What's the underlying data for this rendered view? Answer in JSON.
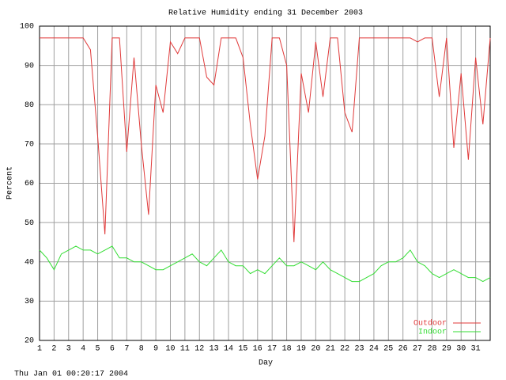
{
  "chart_data": {
    "type": "line",
    "title": "Relative Humidity ending 31 December 2003",
    "y_label": "Percent",
    "x_label": "Day",
    "footer": "Thu Jan 01 00:20:17 2004",
    "xlim": [
      1,
      32
    ],
    "xticks": [
      1,
      2,
      3,
      4,
      5,
      6,
      7,
      8,
      9,
      10,
      11,
      12,
      13,
      14,
      15,
      16,
      17,
      18,
      19,
      20,
      21,
      22,
      23,
      24,
      25,
      26,
      27,
      28,
      29,
      30,
      31
    ],
    "ylim": [
      20,
      100
    ],
    "yticks": [
      20,
      30,
      40,
      50,
      60,
      70,
      80,
      90,
      100
    ],
    "grid": true,
    "legend": "bottom-right",
    "x": [
      1,
      1.5,
      2,
      2.5,
      3,
      3.5,
      4,
      4.5,
      5,
      5.5,
      6,
      6.5,
      7,
      7.5,
      8,
      8.5,
      9,
      9.5,
      10,
      10.5,
      11,
      11.5,
      12,
      12.5,
      13,
      13.5,
      14,
      14.5,
      15,
      15.5,
      16,
      16.5,
      17,
      17.5,
      18,
      18.5,
      19,
      19.5,
      20,
      20.5,
      21,
      21.5,
      22,
      22.5,
      23,
      23.5,
      24,
      24.5,
      25,
      25.5,
      26,
      26.5,
      27,
      27.5,
      28,
      28.5,
      29,
      29.5,
      30,
      30.5,
      31,
      31.5,
      32
    ],
    "series": [
      {
        "name": "Outdoor",
        "color": "#e03a3a",
        "values": [
          97,
          97,
          97,
          97,
          97,
          97,
          97,
          94,
          72,
          47,
          97,
          97,
          68,
          92,
          70,
          52,
          85,
          78,
          96,
          93,
          97,
          97,
          97,
          87,
          85,
          97,
          97,
          97,
          92,
          75,
          61,
          72,
          97,
          97,
          90,
          45,
          88,
          78,
          96,
          82,
          97,
          97,
          78,
          73,
          97,
          97,
          97,
          97,
          97,
          97,
          97,
          97,
          96,
          97,
          97,
          82,
          97,
          69,
          88,
          66,
          92,
          75,
          97
        ]
      },
      {
        "name": "Indoor",
        "color": "#33dd33",
        "values": [
          43,
          41,
          38,
          42,
          43,
          44,
          43,
          43,
          42,
          43,
          44,
          41,
          41,
          40,
          40,
          39,
          38,
          38,
          39,
          40,
          41,
          42,
          40,
          39,
          41,
          43,
          40,
          39,
          39,
          37,
          38,
          37,
          39,
          41,
          39,
          39,
          40,
          39,
          38,
          40,
          38,
          37,
          36,
          35,
          35,
          36,
          37,
          39,
          40,
          40,
          41,
          43,
          40,
          39,
          37,
          36,
          37,
          38,
          37,
          36,
          36,
          35,
          36
        ]
      }
    ]
  }
}
